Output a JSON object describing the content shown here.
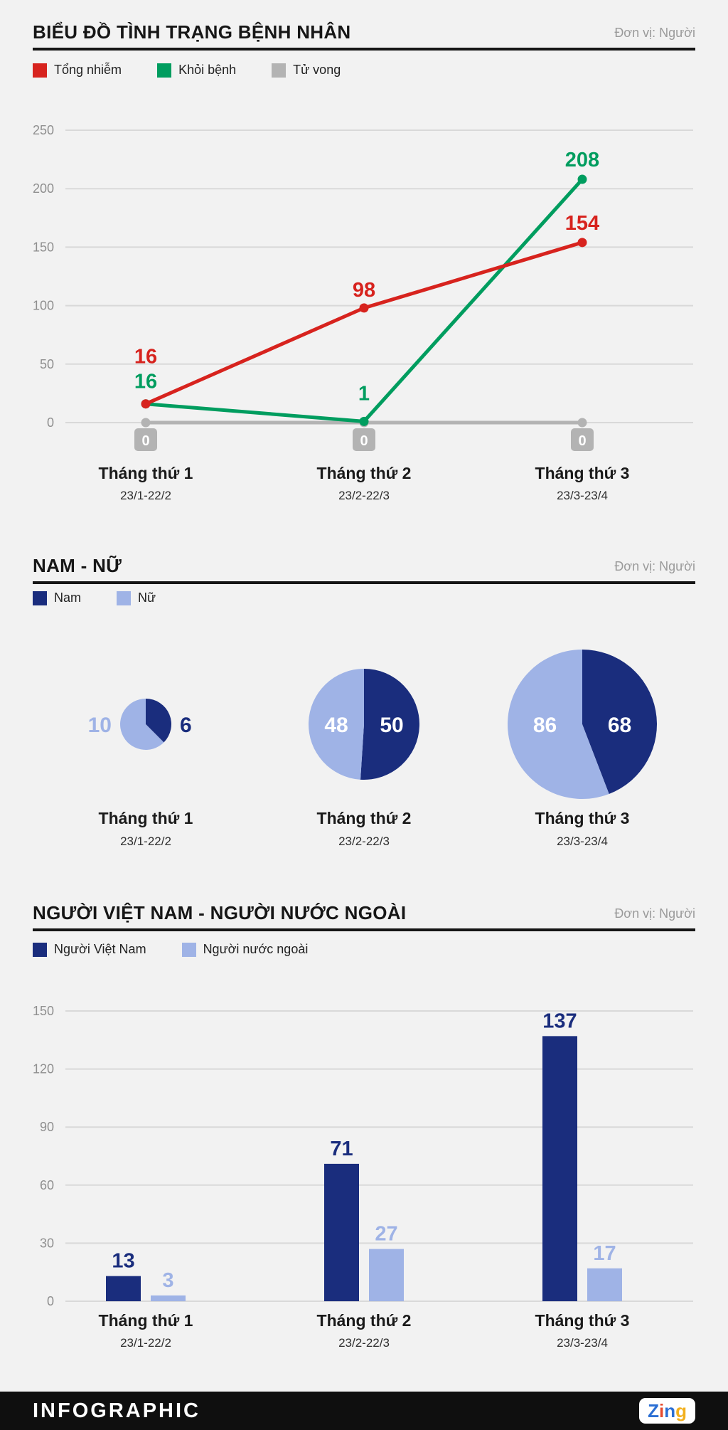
{
  "footer": {
    "brand": "INFOGRAPHIC",
    "logo": {
      "text": "Zing",
      "letters": [
        {
          "char": "Z",
          "color": "#2b6fd4"
        },
        {
          "char": "i",
          "color": "#e64a2e"
        },
        {
          "char": "n",
          "color": "#2b6fd4"
        },
        {
          "char": "g",
          "color": "#f2b01e"
        }
      ]
    }
  },
  "chart_data": [
    {
      "type": "line",
      "title": "BIỂU ĐỒ TÌNH TRẠNG BỆNH NHÂN",
      "unit": "Đơn vị: Người",
      "categories": [
        "Tháng thứ 1",
        "Tháng thứ 2",
        "Tháng thứ 3"
      ],
      "category_dates": [
        "23/1-22/2",
        "23/2-22/3",
        "23/3-23/4"
      ],
      "series": [
        {
          "name": "Tổng nhiễm",
          "color": "#d7231e",
          "values": [
            16,
            98,
            154
          ]
        },
        {
          "name": "Khỏi bệnh",
          "color": "#009d5f",
          "values": [
            16,
            1,
            208
          ]
        },
        {
          "name": "Tử vong",
          "color": "#b3b3b3",
          "values": [
            0,
            0,
            0
          ]
        }
      ],
      "ylim": [
        0,
        250
      ],
      "yticks": [
        0,
        50,
        100,
        150,
        200,
        250
      ],
      "grid": true,
      "legend_position": "top-left"
    },
    {
      "type": "pie",
      "title": "NAM - NỮ",
      "unit": "Đơn vị: Người",
      "legend": [
        {
          "name": "Nam",
          "color": "#1a2d7d"
        },
        {
          "name": "Nữ",
          "color": "#9fb3e6"
        }
      ],
      "groups": [
        {
          "category": "Tháng thứ 1",
          "date": "23/1-22/2",
          "nam": 6,
          "nu": 10
        },
        {
          "category": "Tháng thứ 2",
          "date": "23/2-22/3",
          "nam": 50,
          "nu": 48
        },
        {
          "category": "Tháng thứ 3",
          "date": "23/3-23/4",
          "nam": 68,
          "nu": 86
        }
      ]
    },
    {
      "type": "bar",
      "title": "NGƯỜI VIỆT NAM - NGƯỜI NƯỚC NGOÀI",
      "unit": "Đơn vị: Người",
      "categories": [
        "Tháng thứ 1",
        "Tháng thứ 2",
        "Tháng thứ 3"
      ],
      "category_dates": [
        "23/1-22/2",
        "23/2-22/3",
        "23/3-23/4"
      ],
      "series": [
        {
          "name": "Người Việt Nam",
          "color": "#1a2d7d",
          "values": [
            13,
            71,
            137
          ]
        },
        {
          "name": "Người nước ngoài",
          "color": "#9fb3e6",
          "values": [
            3,
            27,
            17
          ]
        }
      ],
      "ylim": [
        0,
        150
      ],
      "yticks": [
        0,
        30,
        60,
        90,
        120,
        150
      ],
      "grid": true
    }
  ]
}
